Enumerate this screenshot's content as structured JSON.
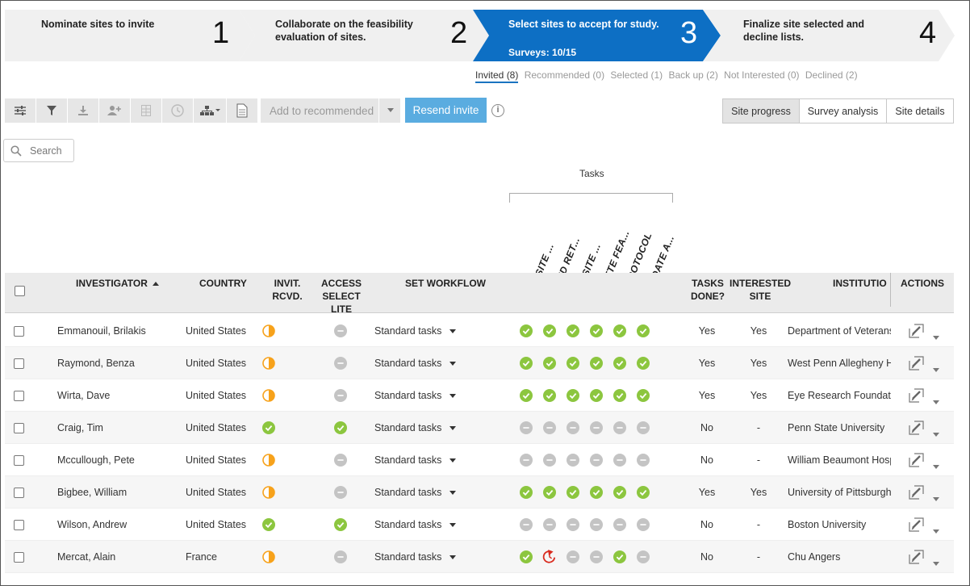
{
  "steps": [
    {
      "label": "Nominate sites to invite",
      "number": "1"
    },
    {
      "label": "Collaborate on the feasibility evaluation of sites.",
      "number": "2"
    },
    {
      "label": "Select sites to accept for study.",
      "number": "3",
      "sub": "Surveys: 10/15"
    },
    {
      "label": "Finalize site selected and decline lists.",
      "number": "4"
    }
  ],
  "subtabs": [
    "Invited (8)",
    "Recommended (0)",
    "Selected (1)",
    "Back up (2)",
    "Not Interested (0)",
    "Declined (2)"
  ],
  "toolbar": {
    "icons": [
      "sliders-icon",
      "filter-icon",
      "download-icon",
      "add-user-icon",
      "grid-icon",
      "clock-icon",
      "hierarchy-icon",
      "document-icon"
    ],
    "add_recommended": "Add to recommended",
    "resend_invite": "Resend invite",
    "info": "i"
  },
  "views": [
    "Site progress",
    "Survey analysis",
    "Site details"
  ],
  "search": {
    "placeholder": "Search"
  },
  "tasks_group": "Tasks",
  "task_columns": [
    "VERIFY SITE ...",
    "SIGN AND RET...",
    "VERIFY SITE ...",
    "COMPLETE FEA...",
    "VIEW PROTOCOL",
    "ENTER DATE A..."
  ],
  "columns": {
    "investigator": "INVESTIGATOR",
    "country": "COUNTRY",
    "invit_rcvd": "INVIT. RCVD.",
    "access_select_lite": "ACCESS SELECT LITE",
    "set_workflow": "SET WORKFLOW",
    "tasks_done": "TASKS DONE?",
    "interested_site": "INTERESTED SITE",
    "institution": "INSTITUTIO",
    "actions": "ACTIONS"
  },
  "colors": {
    "complete": "#8cc63f",
    "pending": "#f7a21b",
    "neutral": "#c4c4c4",
    "overdue": "#d92b1f",
    "active_step": "#0d6fc4"
  },
  "rows": [
    {
      "investigator": "Emmanouil, Brilakis",
      "country": "United States",
      "invit": "half",
      "access": "neutral",
      "workflow": "Standard tasks",
      "tasks": [
        "done",
        "done",
        "done",
        "done",
        "done",
        "done"
      ],
      "tasks_done": "Yes",
      "interested": "Yes",
      "institution": "Department of Veterans"
    },
    {
      "investigator": "Raymond, Benza",
      "country": "United States",
      "invit": "half",
      "access": "neutral",
      "workflow": "Standard tasks",
      "tasks": [
        "done",
        "done",
        "done",
        "done",
        "done",
        "done"
      ],
      "tasks_done": "Yes",
      "interested": "Yes",
      "institution": "West Penn Allegheny H"
    },
    {
      "investigator": "Wirta, Dave",
      "country": "United States",
      "invit": "half",
      "access": "neutral",
      "workflow": "Standard tasks",
      "tasks": [
        "done",
        "done",
        "done",
        "done",
        "done",
        "done"
      ],
      "tasks_done": "Yes",
      "interested": "Yes",
      "institution": "Eye Research Foundatic"
    },
    {
      "investigator": "Craig, Tim",
      "country": "United States",
      "invit": "done",
      "access": "done",
      "workflow": "Standard tasks",
      "tasks": [
        "neutral",
        "neutral",
        "neutral",
        "neutral",
        "neutral",
        "neutral"
      ],
      "tasks_done": "No",
      "interested": "-",
      "institution": "Penn State University"
    },
    {
      "investigator": "Mccullough, Pete",
      "country": "United States",
      "invit": "half",
      "access": "neutral",
      "workflow": "Standard tasks",
      "tasks": [
        "neutral",
        "neutral",
        "neutral",
        "neutral",
        "neutral",
        "neutral"
      ],
      "tasks_done": "No",
      "interested": "-",
      "institution": "William Beaumont Hosp"
    },
    {
      "investigator": "Bigbee, William",
      "country": "United States",
      "invit": "half",
      "access": "neutral",
      "workflow": "Standard tasks",
      "tasks": [
        "done",
        "done",
        "done",
        "done",
        "done",
        "done"
      ],
      "tasks_done": "Yes",
      "interested": "Yes",
      "institution": "University of Pittsburgh"
    },
    {
      "investigator": "Wilson, Andrew",
      "country": "United States",
      "invit": "done",
      "access": "done",
      "workflow": "Standard tasks",
      "tasks": [
        "neutral",
        "neutral",
        "neutral",
        "neutral",
        "neutral",
        "neutral"
      ],
      "tasks_done": "No",
      "interested": "-",
      "institution": "Boston University"
    },
    {
      "investigator": "Mercat, Alain",
      "country": "France",
      "invit": "half",
      "access": "neutral",
      "workflow": "Standard tasks",
      "tasks": [
        "done",
        "overdue",
        "neutral",
        "neutral",
        "done",
        "neutral"
      ],
      "tasks_done": "No",
      "interested": "-",
      "institution": "Chu Angers"
    }
  ]
}
